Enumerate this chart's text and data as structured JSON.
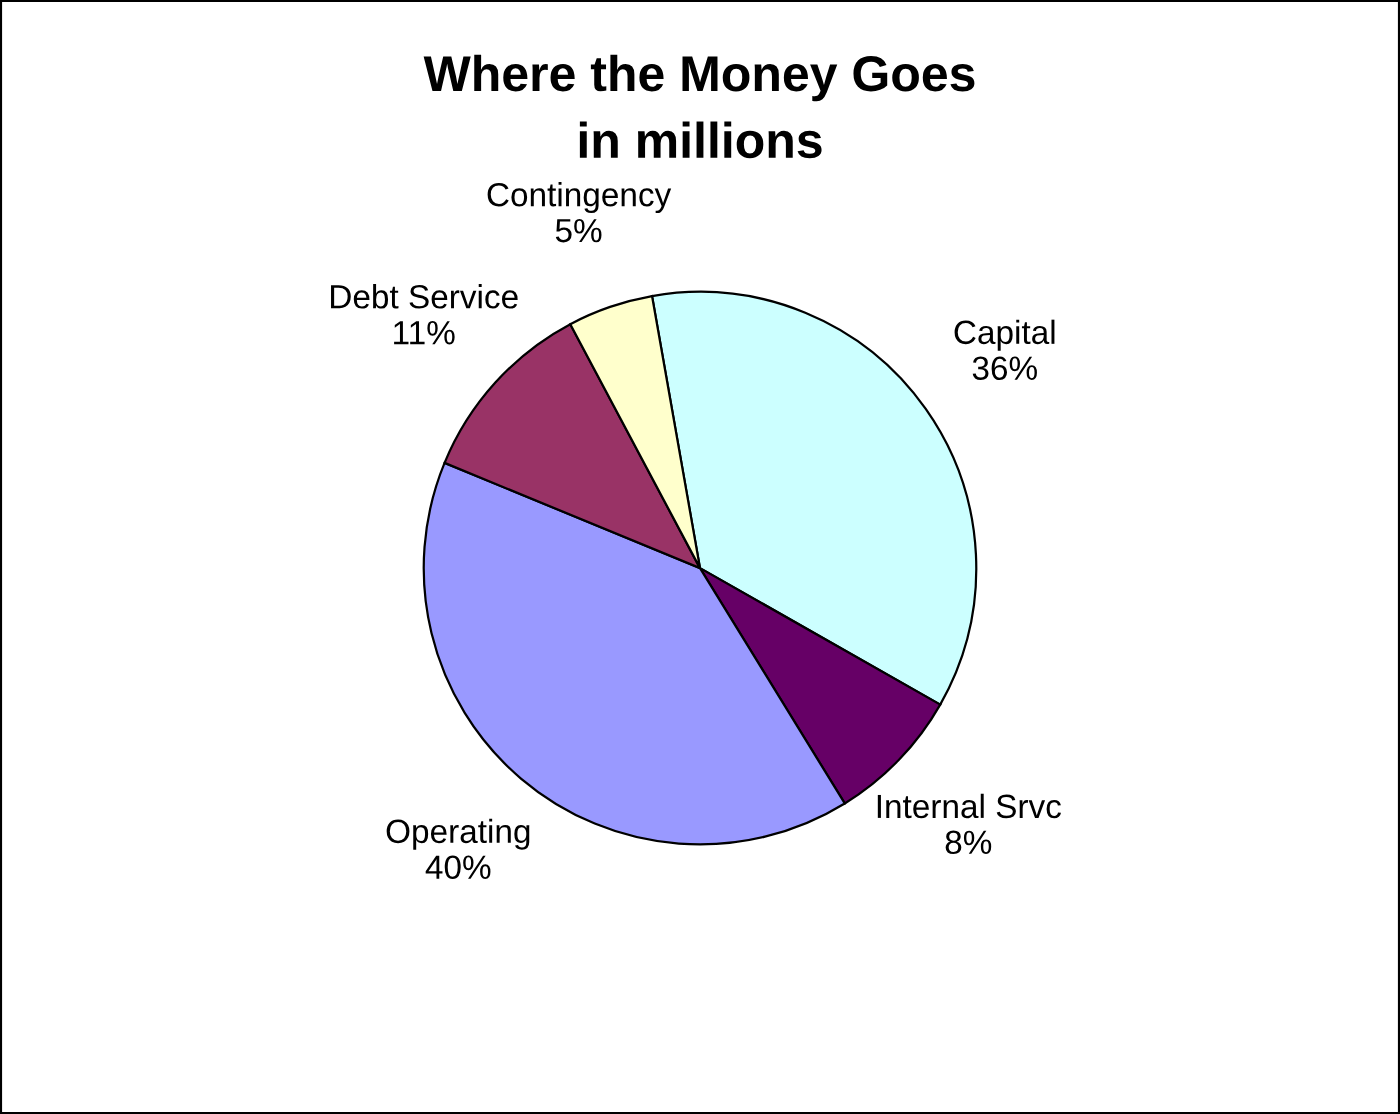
{
  "chart_data": {
    "type": "pie",
    "title": "Where the Money Goes",
    "subtitle": "in millions",
    "categories": [
      "Capital",
      "Internal Srvc",
      "Operating",
      "Debt Service",
      "Contingency"
    ],
    "values": [
      36,
      8,
      40,
      11,
      5
    ],
    "value_labels": [
      "36%",
      "8%",
      "40%",
      "11%",
      "5%"
    ],
    "colors": [
      "#ccffff",
      "#660066",
      "#9999ff",
      "#993366",
      "#ffffcc"
    ],
    "legend": false
  }
}
